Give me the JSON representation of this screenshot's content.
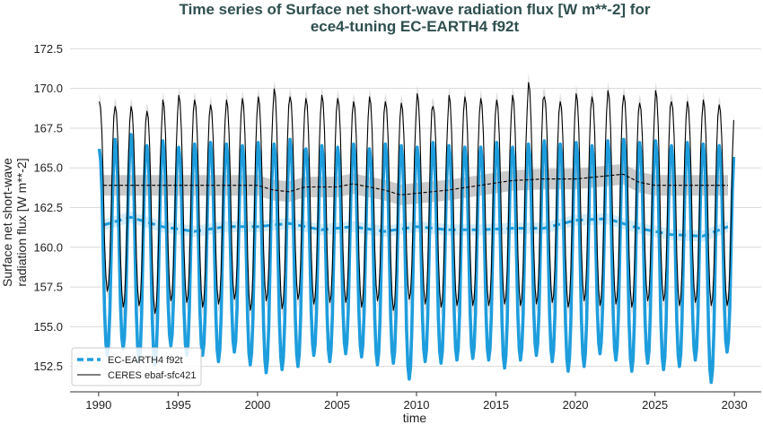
{
  "chart_data": {
    "type": "line",
    "title_line1": "Time series of Surface net short-wave radiation flux [W m**-2] for",
    "title_line2": "ece4-tuning EC-EARTH4 f92t",
    "xlabel": "time",
    "ylabel_line1": "Surface net short-wave",
    "ylabel_line2": "radiation flux [W m**-2]",
    "xlim": [
      1988.2,
      2031.8
    ],
    "ylim": [
      150.9,
      173.2
    ],
    "xticks": [
      1990,
      1995,
      2000,
      2005,
      2010,
      2015,
      2020,
      2025,
      2030
    ],
    "xtick_labels": [
      "1990",
      "1995",
      "2000",
      "2005",
      "2010",
      "2015",
      "2020",
      "2025",
      "2030"
    ],
    "yticks": [
      152.5,
      155.0,
      157.5,
      160.0,
      162.5,
      165.0,
      167.5,
      170.0,
      172.5
    ],
    "ytick_labels": [
      "152.5",
      "155.0",
      "157.5",
      "160.0",
      "162.5",
      "165.0",
      "167.5",
      "170.0",
      "172.5"
    ],
    "grid": "y",
    "legend_position": "lower-left",
    "series": [
      {
        "name": "EC-EARTH4 f92t",
        "color": "#1e9ddd",
        "style": "monthly-seasonal-cycle",
        "x_start": 1990.0,
        "x_end": 2030.0,
        "annual_peaks": [
          166.2,
          166.8,
          167.1,
          166.4,
          166.7,
          166.3,
          166.5,
          166.6,
          166.5,
          166.4,
          166.6,
          166.5,
          166.8,
          166.2,
          166.4,
          166.3,
          166.5,
          166.2,
          166.5,
          166.4,
          166.3,
          166.6,
          166.4,
          166.3,
          166.3,
          166.6,
          166.3,
          166.5,
          166.7,
          166.5,
          166.6,
          166.4,
          166.7,
          166.8,
          166.6,
          166.7,
          166.4,
          166.6,
          166.5,
          166.4
        ],
        "annual_troughs": [
          153.2,
          153.6,
          152.8,
          152.6,
          153.8,
          153.2,
          153.2,
          152.8,
          153.4,
          152.6,
          152.1,
          152.3,
          152.5,
          153.2,
          152.8,
          153.3,
          153.1,
          152.6,
          152.7,
          151.7,
          152.8,
          152.7,
          152.9,
          153.0,
          152.9,
          152.4,
          152.9,
          153.2,
          152.8,
          152.2,
          152.5,
          153.3,
          152.9,
          152.2,
          152.7,
          152.3,
          152.5,
          152.9,
          151.5,
          153.4
        ],
        "climatology_x": [
          1990.3,
          1992,
          1994,
          1996,
          1998,
          2000,
          2002,
          2004,
          2006,
          2008,
          2010,
          2012,
          2014,
          2016,
          2018,
          2020,
          2022,
          2024,
          2026,
          2028,
          2029.6
        ],
        "climatology_y": [
          161.4,
          161.9,
          161.3,
          161.0,
          161.3,
          161.3,
          161.5,
          161.1,
          161.3,
          161.0,
          161.3,
          161.1,
          161.1,
          161.2,
          161.2,
          161.7,
          161.8,
          161.2,
          160.8,
          160.7,
          161.3
        ]
      },
      {
        "name": "CERES ebaf-sfc421",
        "color": "#000000",
        "style": "monthly-seasonal-cycle",
        "x_start": 1990.0,
        "x_end": 2030.0,
        "annual_peaks": [
          169.2,
          168.9,
          168.9,
          168.6,
          169.3,
          169.6,
          169.3,
          169.0,
          169.3,
          169.4,
          169.5,
          170.0,
          169.5,
          169.4,
          169.6,
          169.4,
          169.2,
          169.5,
          169.2,
          169.1,
          169.7,
          168.9,
          169.6,
          169.5,
          169.4,
          169.3,
          169.6,
          170.4,
          169.5,
          169.2,
          169.7,
          169.5,
          169.9,
          169.6,
          169.1,
          169.9,
          169.2,
          169.2,
          169.3,
          169.0
        ],
        "annual_troughs": [
          157.2,
          156.2,
          156.3,
          155.8,
          156.6,
          156.5,
          156.2,
          156.4,
          156.7,
          156.0,
          156.6,
          156.1,
          156.7,
          156.4,
          156.5,
          156.5,
          156.2,
          156.6,
          156.0,
          156.7,
          156.4,
          156.2,
          156.3,
          156.3,
          156.3,
          156.4,
          156.3,
          156.4,
          156.5,
          156.2,
          156.6,
          156.3,
          156.4,
          156.2,
          156.6,
          156.6,
          156.3,
          156.5,
          156.3,
          156.3
        ],
        "climatology_x": [
          1990.3,
          1994,
          1998,
          2000,
          2001,
          2002,
          2003,
          2005,
          2006,
          2008,
          2009,
          2010,
          2012,
          2014,
          2016,
          2018,
          2020,
          2022,
          2023,
          2024,
          2025,
          2029.6
        ],
        "climatology_y": [
          163.9,
          163.9,
          163.9,
          163.9,
          163.6,
          163.5,
          163.8,
          163.8,
          164.0,
          163.6,
          163.3,
          163.4,
          163.6,
          163.9,
          164.2,
          164.3,
          164.3,
          164.5,
          164.6,
          164.1,
          163.9,
          163.9
        ]
      }
    ]
  }
}
